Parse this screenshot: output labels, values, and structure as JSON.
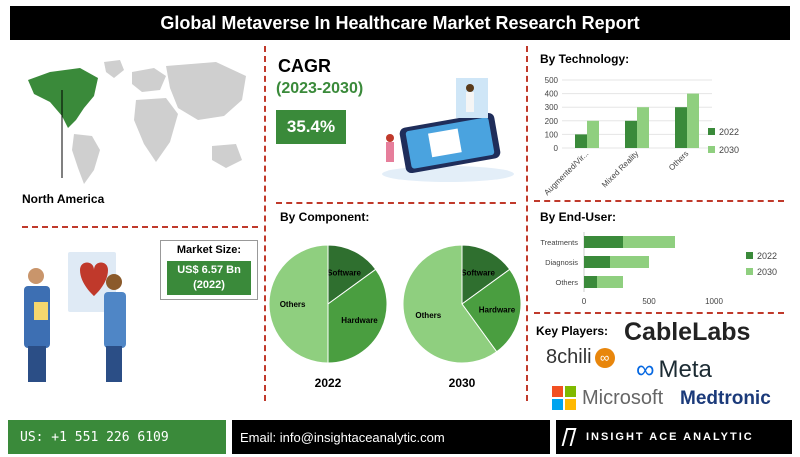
{
  "title": "Global Metaverse In Healthcare Market  Research Report",
  "map": {
    "region_label": "North America"
  },
  "market_size": {
    "heading": "Market Size:",
    "value": "US$ 6.57 Bn",
    "year": "(2022)"
  },
  "cagr": {
    "label": "CAGR",
    "period": "(2023-2030)",
    "value": "35.4%"
  },
  "sections": {
    "by_component": "By Component:",
    "by_technology": "By Technology:",
    "by_end_user": "By End-User:",
    "key_players": "Key Players:"
  },
  "key_players": [
    "CableLabs",
    "8chili",
    "Meta",
    "Microsoft",
    "Medtronic"
  ],
  "footer": {
    "phone": "US: +1 551 226 6109",
    "email": "Email: info@insightaceanalytic.com",
    "brand": "INSIGHT ACE ANALYTIC"
  },
  "colors": {
    "dark_green": "#3a8a3a",
    "light_green": "#8fcf7f",
    "accent_red": "#c0392b",
    "black": "#000000"
  },
  "chart_data": [
    {
      "type": "pie",
      "label": "2022",
      "slices": [
        {
          "name": "Others",
          "value": 50
        },
        {
          "name": "Software",
          "value": 15
        },
        {
          "name": "Hardware",
          "value": 35
        }
      ]
    },
    {
      "type": "pie",
      "label": "2030",
      "slices": [
        {
          "name": "Others",
          "value": 60
        },
        {
          "name": "Software",
          "value": 15
        },
        {
          "name": "Hardware",
          "value": 25
        }
      ]
    },
    {
      "type": "bar",
      "title": "By Technology:",
      "categories": [
        "Augmented/Vir...",
        "Mixed Reality",
        "Others"
      ],
      "series": [
        {
          "name": "2022",
          "values": [
            100,
            200,
            300
          ]
        },
        {
          "name": "2030",
          "values": [
            200,
            300,
            400
          ]
        }
      ],
      "ylim": [
        0,
        500
      ],
      "yticks": [
        "0",
        "100",
        "200",
        "300",
        "400",
        "500"
      ]
    },
    {
      "type": "bar",
      "orientation": "horizontal",
      "stacked": true,
      "title": "By End-User:",
      "categories": [
        "Treatments",
        "Diagnosis",
        "Others"
      ],
      "series": [
        {
          "name": "2022",
          "values": [
            300,
            200,
            100
          ]
        },
        {
          "name": "2030",
          "values": [
            400,
            300,
            200
          ]
        }
      ],
      "xlim": [
        0,
        1000
      ],
      "xticks": [
        "0",
        "500",
        "1000"
      ]
    }
  ]
}
